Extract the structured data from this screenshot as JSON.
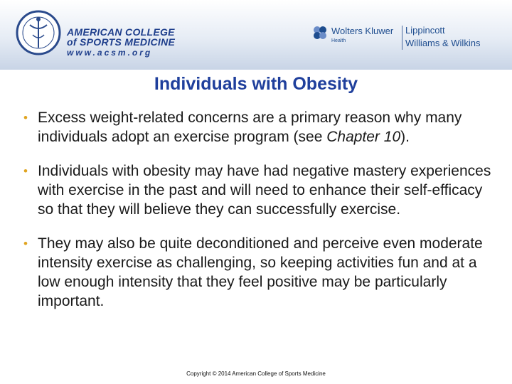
{
  "header": {
    "acsm": {
      "line1": "AMERICAN COLLEGE",
      "line2": "of SPORTS MEDICINE",
      "line3": "www.acsm.org"
    },
    "publisher": {
      "name": "Wolters Kluwer",
      "division": "Health",
      "imprint_line1": "Lippincott",
      "imprint_line2": "Williams & Wilkins"
    },
    "colors": {
      "acsm_blue": "#1f3f8c",
      "wk_blue": "#1e4d8f",
      "bullet_gold": "#e0a420"
    }
  },
  "slide": {
    "title": "Individuals with Obesity",
    "bullets": [
      {
        "before": "Excess weight-related concerns are a primary reason why many individuals adopt an exercise program (see ",
        "emph": "Chapter 10",
        "after": ")."
      },
      {
        "before": "Individuals with obesity may have had negative mastery experiences with exercise in the past and will need to enhance their self-efficacy so that they will believe they can successfully exercise.",
        "emph": "",
        "after": ""
      },
      {
        "before": "They may also be quite deconditioned and perceive even moderate intensity exercise as challenging, so keeping activities fun and at a low enough intensity that they feel positive may be particularly important.",
        "emph": "",
        "after": ""
      }
    ]
  },
  "footer": {
    "copyright": "Copyright © 2014 American College of Sports Medicine"
  }
}
